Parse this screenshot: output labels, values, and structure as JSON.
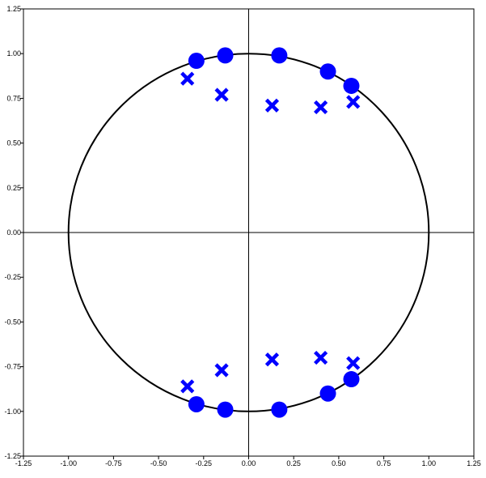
{
  "chart_data": {
    "type": "scatter",
    "title": "",
    "xlabel": "",
    "ylabel": "",
    "xlim": [
      -1.25,
      1.25
    ],
    "ylim": [
      -1.25,
      1.25
    ],
    "grid": false,
    "x_ticks": [
      "-1.25",
      "-1.00",
      "-0.75",
      "-0.50",
      "-0.25",
      "0.00",
      "0.25",
      "0.50",
      "0.75",
      "1.00",
      "1.25"
    ],
    "y_ticks": [
      "1.25",
      "1.00",
      "0.75",
      "0.50",
      "0.25",
      "0.00",
      "-0.25",
      "-0.50",
      "-0.75",
      "-1.00",
      "-1.25"
    ],
    "unit_circle": {
      "radius": 1,
      "color": "#000000"
    },
    "series": [
      {
        "marker": "circle",
        "color": "#0000ff",
        "points": [
          [
            -0.29,
            0.96
          ],
          [
            -0.13,
            0.99
          ],
          [
            0.17,
            0.99
          ],
          [
            0.44,
            0.9
          ],
          [
            0.57,
            0.82
          ],
          [
            -0.29,
            -0.96
          ],
          [
            -0.13,
            -0.99
          ],
          [
            0.17,
            -0.99
          ],
          [
            0.44,
            -0.9
          ],
          [
            0.57,
            -0.82
          ]
        ]
      },
      {
        "marker": "cross",
        "color": "#0000ff",
        "points": [
          [
            -0.34,
            0.86
          ],
          [
            -0.15,
            0.77
          ],
          [
            0.13,
            0.71
          ],
          [
            0.4,
            0.7
          ],
          [
            0.58,
            0.73
          ],
          [
            -0.34,
            -0.86
          ],
          [
            -0.15,
            -0.77
          ],
          [
            0.13,
            -0.71
          ],
          [
            0.4,
            -0.7
          ],
          [
            0.58,
            -0.73
          ]
        ]
      }
    ]
  }
}
